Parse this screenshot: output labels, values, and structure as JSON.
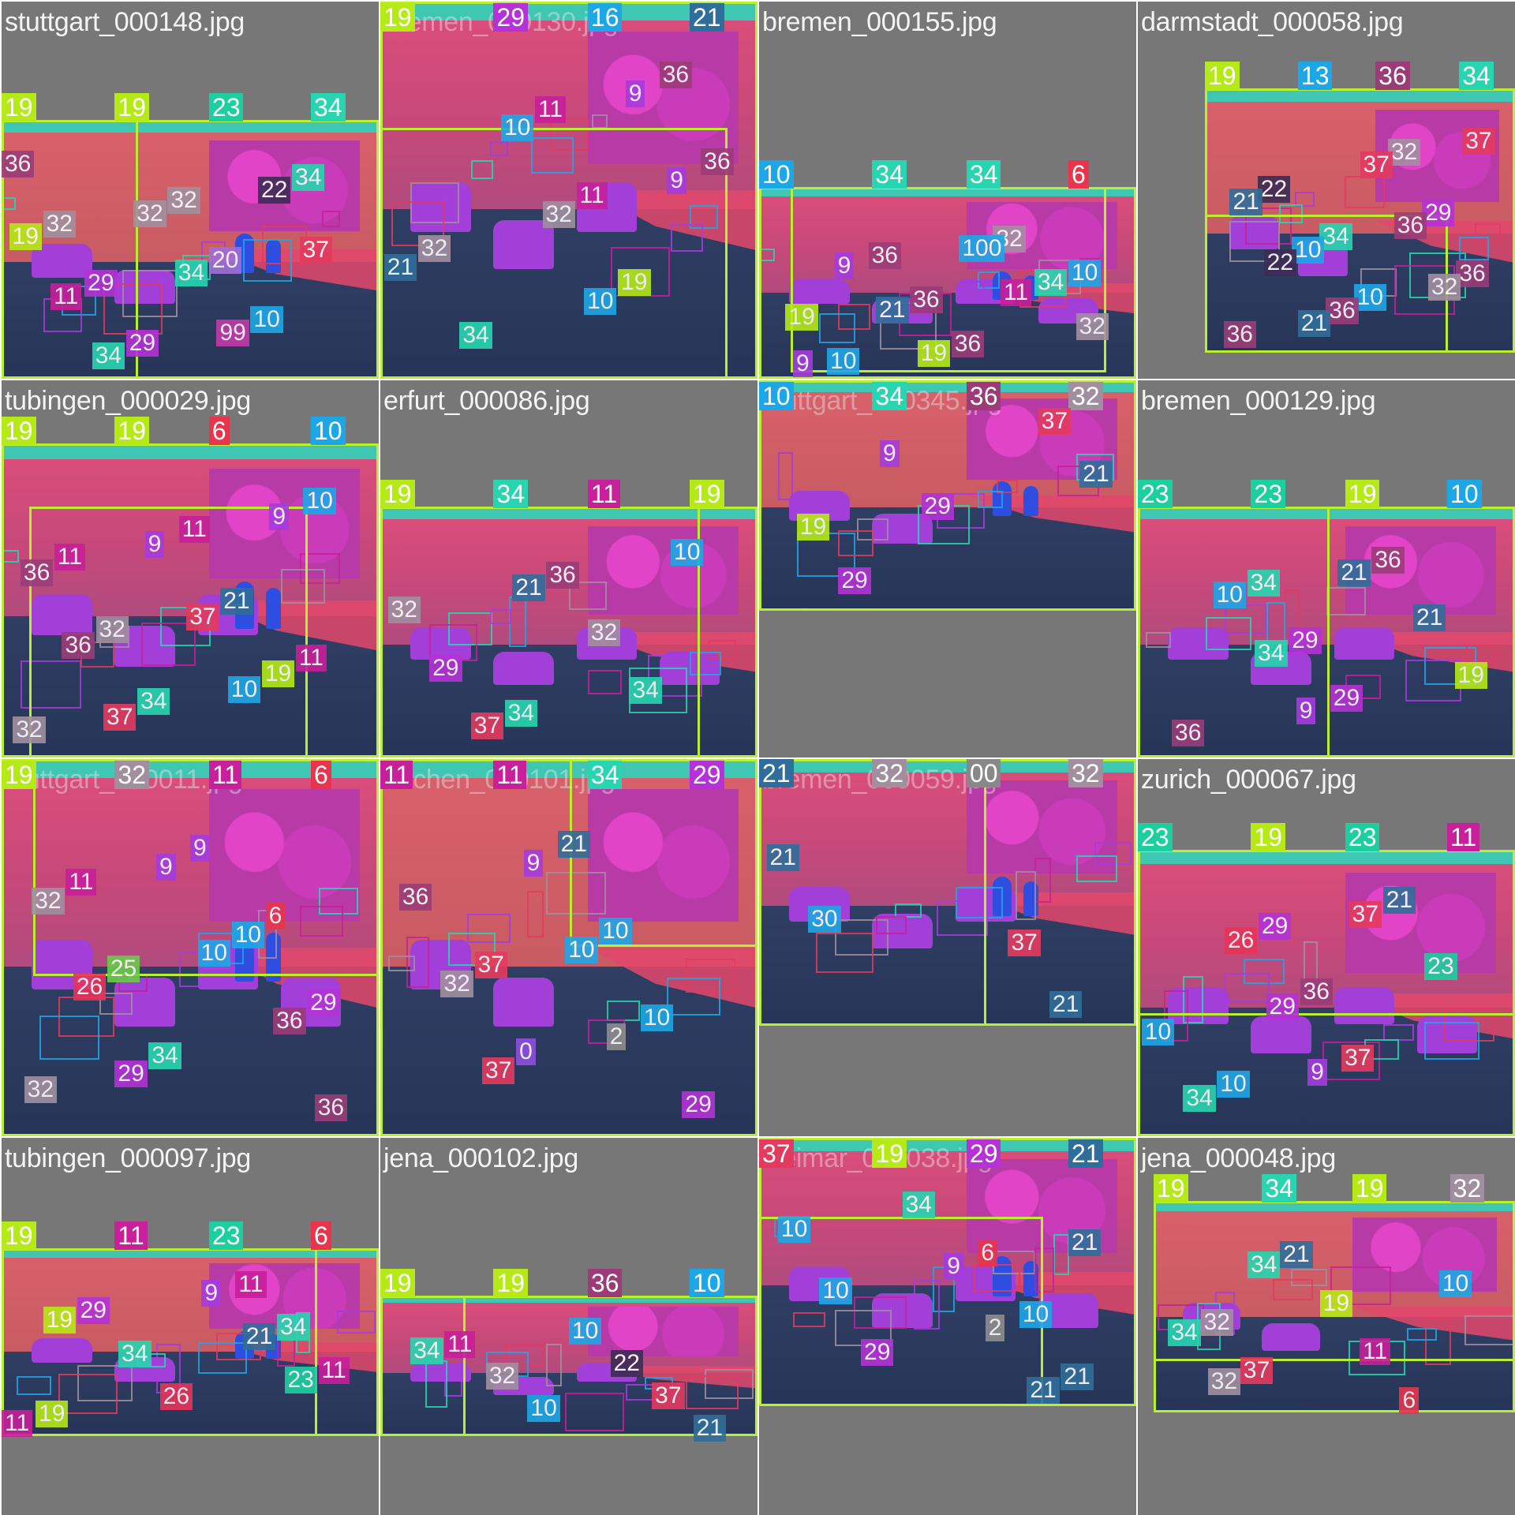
{
  "mosaic": {
    "tiles": [
      {
        "title": "stuttgart_000148.jpg",
        "labels": [
          "19",
          "19",
          "23",
          "34",
          "36",
          "32",
          "29",
          "29",
          "32",
          "20",
          "10",
          "34",
          "19",
          "11",
          "34",
          "32",
          "34",
          "99",
          "22",
          "37"
        ]
      },
      {
        "title": "bremen_000130.jpg",
        "labels": [
          "19",
          "29",
          "16",
          "21",
          "11",
          "11",
          "19",
          "36",
          "36",
          "32",
          "34",
          "10",
          "32",
          "10",
          "9",
          "9",
          "21"
        ]
      },
      {
        "title": "bremen_000155.jpg",
        "labels": [
          "10",
          "34",
          "34",
          "6",
          "10",
          "19",
          "10",
          "36",
          "36",
          "36",
          "32",
          "34",
          "32",
          "9",
          "9",
          "21",
          "19",
          "100",
          "11"
        ]
      },
      {
        "title": "darmstadt_000058.jpg",
        "labels": [
          "19",
          "13",
          "36",
          "34",
          "34",
          "10",
          "32",
          "29",
          "36",
          "36",
          "22",
          "10",
          "36",
          "37",
          "36",
          "32",
          "37",
          "21",
          "22",
          "21"
        ]
      },
      {
        "title": "tubingen_000029.jpg",
        "labels": [
          "19",
          "19",
          "6",
          "10",
          "11",
          "32",
          "11",
          "32",
          "34",
          "11",
          "21",
          "19",
          "10",
          "36",
          "36",
          "37",
          "9",
          "37",
          "10",
          "9"
        ]
      },
      {
        "title": "erfurt_000086.jpg",
        "labels": [
          "19",
          "34",
          "11",
          "19",
          "34",
          "36",
          "32",
          "34",
          "10",
          "32",
          "29",
          "37",
          "21"
        ]
      },
      {
        "title": "stuttgart_000345.jpg",
        "labels": [
          "10",
          "34",
          "36",
          "32",
          "37",
          "21",
          "19",
          "29",
          "9",
          "29"
        ]
      },
      {
        "title": "bremen_000129.jpg",
        "labels": [
          "23",
          "23",
          "19",
          "10",
          "34",
          "29",
          "29",
          "36",
          "21",
          "19",
          "36",
          "10",
          "34",
          "9",
          "21"
        ]
      },
      {
        "title": "stuttgart_000011.jpg",
        "labels": [
          "19",
          "32",
          "11",
          "6",
          "6",
          "29",
          "32",
          "11",
          "25",
          "34",
          "9",
          "10",
          "36",
          "36",
          "32",
          "26",
          "29",
          "9",
          "10"
        ]
      },
      {
        "title": "aachen_000101.jpg",
        "labels": [
          "11",
          "11",
          "34",
          "29",
          "37",
          "0",
          "21",
          "10",
          "10",
          "29",
          "36",
          "32",
          "37",
          "9",
          "10",
          "2"
        ]
      },
      {
        "title": "bremen_000059.jpg",
        "labels": [
          "21",
          "32",
          "00",
          "32",
          "37",
          "21",
          "21",
          "30"
        ]
      },
      {
        "title": "zurich_000067.jpg",
        "labels": [
          "23",
          "19",
          "23",
          "11",
          "10",
          "29",
          "36",
          "37",
          "21",
          "23",
          "10",
          "34",
          "26",
          "29",
          "9",
          "37"
        ]
      },
      {
        "title": "tubingen_000097.jpg",
        "labels": [
          "19",
          "11",
          "23",
          "6",
          "11",
          "34",
          "11",
          "19",
          "29",
          "34",
          "26",
          "9",
          "21",
          "23",
          "11",
          "19"
        ]
      },
      {
        "title": "jena_000102.jpg",
        "labels": [
          "19",
          "19",
          "36",
          "10",
          "11",
          "32",
          "10",
          "10",
          "22",
          "37",
          "21",
          "34"
        ]
      },
      {
        "title": "weimar_000038.jpg",
        "labels": [
          "37",
          "19",
          "29",
          "21",
          "6",
          "10",
          "21",
          "10",
          "10",
          "29",
          "34",
          "9",
          "2",
          "21",
          "21"
        ]
      },
      {
        "title": "jena_000048.jpg",
        "labels": [
          "19",
          "34",
          "19",
          "32",
          "32",
          "37",
          "21",
          "19",
          "11",
          "6",
          "10",
          "34",
          "32",
          "34"
        ]
      }
    ]
  },
  "palette": {
    "road": "#2f3e63",
    "sidewalk": "#e3486b",
    "building": "#d94d7a",
    "vegetation": "#c93bb8",
    "sky": "#2ee2c8",
    "car": "#a23fd8",
    "person": "#2d4ee0",
    "bbox": "#b8f02f",
    "background": "#777777"
  },
  "label_colors": {
    "0": "#8e4fe0",
    "2": "#8e8e8e",
    "6": "#e8344c",
    "9": "#a63bdf",
    "10": "#1ea7e6",
    "11": "#c81f9a",
    "13": "#1ea7e6",
    "16": "#1ea7e6",
    "19": "#b6ea16",
    "20": "#9f6fd6",
    "21": "#2f6e9a",
    "22": "#3d2c55",
    "23": "#1ccf9f",
    "25": "#6acb4a",
    "26": "#e8345a",
    "29": "#b432d6",
    "30": "#1ea7e6",
    "32": "#a18fa0",
    "34": "#27d6b0",
    "36": "#9b3c78",
    "37": "#e43a5f",
    "99": "#c23aa8",
    "100": "#1ea7e6"
  }
}
